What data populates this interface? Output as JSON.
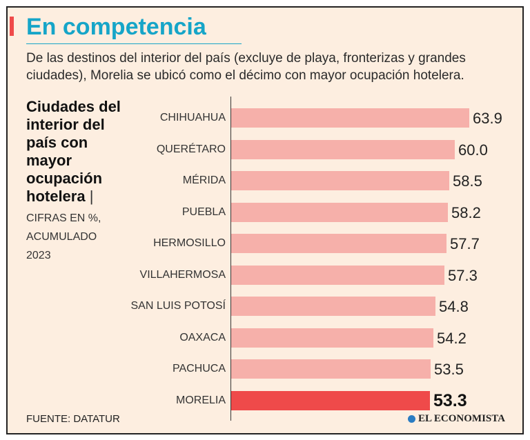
{
  "header": {
    "title": "En competencia",
    "subtitle": "De las destinos del interior del país (excluye de playa, fronterizas y grandes ciudades), Morelia se ubicó como el décimo con mayor ocupación hotelera."
  },
  "side": {
    "heading": "Ciudades del interior del país con mayor ocupación hotelera",
    "pipe": "|",
    "note": "CIFRAS EN %,\nACUMULADO\n2023"
  },
  "footer": {
    "source": "FUENTE: DATATUR",
    "brand": "EL ECONOMISTA"
  },
  "colors": {
    "bar": "#f6b0aa",
    "highlight": "#ef4a4a",
    "title": "#16a5c8"
  },
  "chart_data": {
    "type": "bar",
    "orientation": "horizontal",
    "title": "Ciudades del interior del país con mayor ocupación hotelera",
    "unit": "%",
    "categories": [
      "CHIHUAHUA",
      "QUERÉTARO",
      "MÉRIDA",
      "PUEBLA",
      "HERMOSILLO",
      "VILLAHERMOSA",
      "SAN LUIS POTOSÍ",
      "OAXACA",
      "PACHUCA",
      "MORELIA"
    ],
    "values": [
      63.9,
      60.0,
      58.5,
      58.2,
      57.7,
      57.3,
      54.8,
      54.2,
      53.5,
      53.3
    ],
    "labels": [
      "63.9",
      "60.0",
      "58.5",
      "58.2",
      "57.7",
      "57.3",
      "54.8",
      "54.2",
      "53.5",
      "53.3"
    ],
    "highlight": "MORELIA",
    "xlim": [
      0,
      63.9
    ]
  }
}
